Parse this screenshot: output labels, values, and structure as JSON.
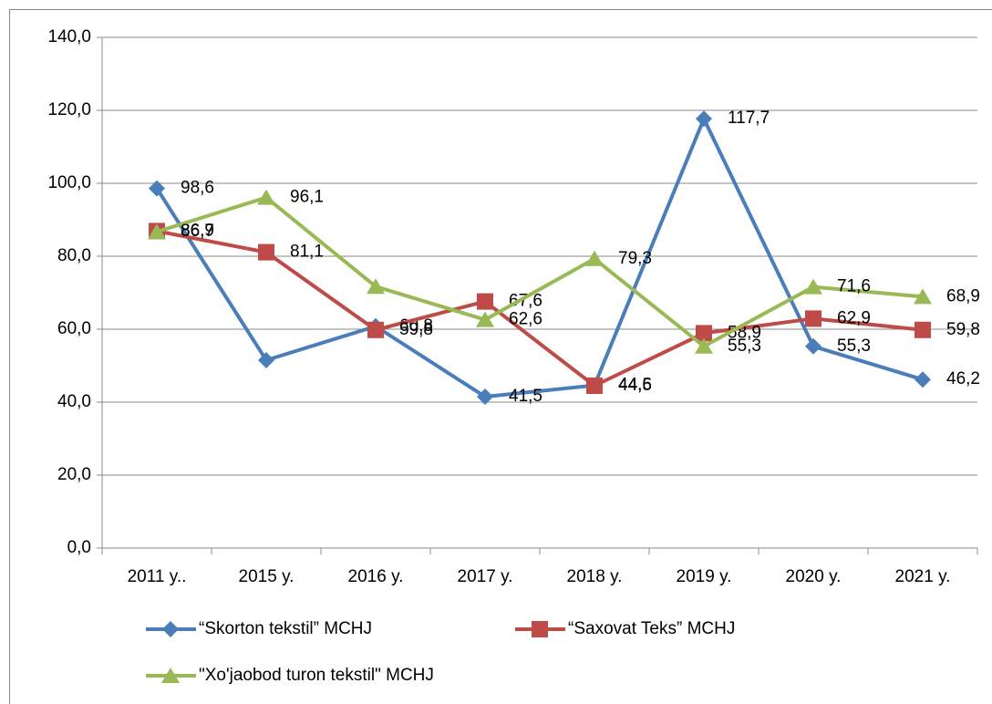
{
  "chart_data": {
    "type": "line",
    "categories": [
      "2011 y..",
      "2015 y.",
      "2016 y.",
      "2017 y.",
      "2018 y.",
      "2019 y.",
      "2020 y.",
      "2021 y."
    ],
    "series": [
      {
        "name": "“Skorton tekstil” MCHJ",
        "color": "#4a7ebb",
        "marker": "diamond",
        "values": [
          98.6,
          51.5,
          60.8,
          41.5,
          44.6,
          117.7,
          55.3,
          46.2
        ],
        "value_labels": [
          "98,6",
          null,
          "60,8",
          "41,5",
          "44,6",
          "117,7",
          "55,3",
          "46,2"
        ]
      },
      {
        "name": "“Saxovat Teks” MCHJ",
        "color": "#be4b48",
        "marker": "square",
        "values": [
          86.9,
          81.1,
          59.8,
          67.6,
          44.5,
          58.9,
          62.9,
          59.8
        ],
        "value_labels": [
          "86,9",
          "81,1",
          "59,8",
          "67,6",
          "44,5",
          "58,9",
          "62,9",
          "59,8"
        ]
      },
      {
        "name": "\"Xo'jaobod turon tekstil\" MCHJ",
        "color": "#98b954",
        "marker": "triangle",
        "values": [
          86.7,
          96.1,
          71.7,
          62.6,
          79.3,
          55.3,
          71.6,
          68.9
        ],
        "value_labels": [
          "86,7",
          "96,1",
          null,
          "62,6",
          "79,3",
          "55,3",
          "71,6",
          "68,9"
        ]
      }
    ],
    "ylim": [
      0,
      140
    ],
    "yticks": [
      {
        "value": 0,
        "label": "0,0"
      },
      {
        "value": 20,
        "label": "20,0"
      },
      {
        "value": 40,
        "label": "40,0"
      },
      {
        "value": 60,
        "label": "60,0"
      },
      {
        "value": 80,
        "label": "80,0"
      },
      {
        "value": 100,
        "label": "100,0"
      },
      {
        "value": 120,
        "label": "120,0"
      },
      {
        "value": 140,
        "label": "140,0"
      }
    ],
    "grid": true
  }
}
